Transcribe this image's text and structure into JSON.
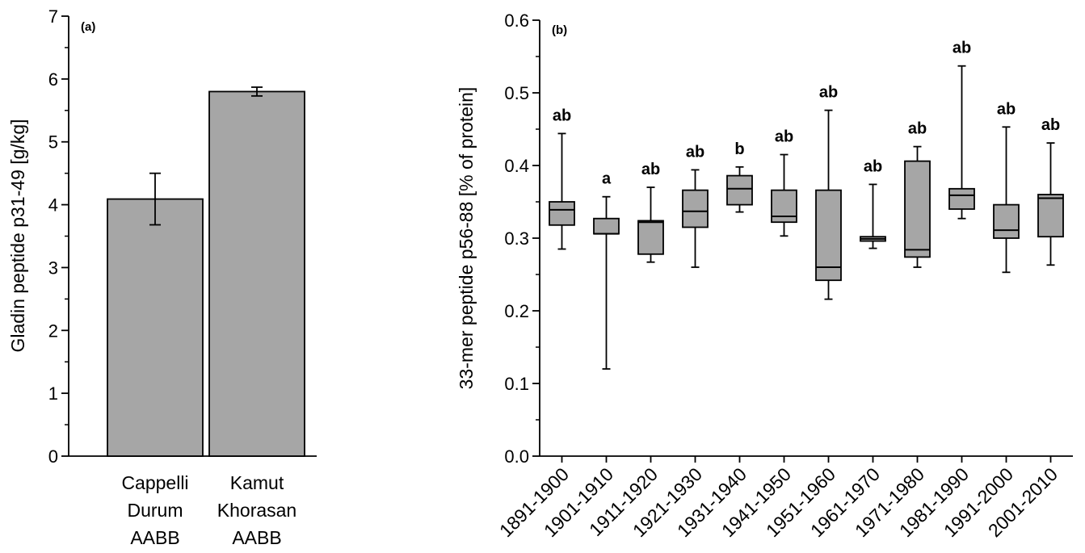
{
  "colors": {
    "fill": "#a6a6a6",
    "stroke": "#000000"
  },
  "chart_data": [
    {
      "type": "bar",
      "panel_label": "(a)",
      "ylabel": "Gladin peptide p31-49 [g/kg]",
      "ylim": [
        0,
        7
      ],
      "yticks": [
        0,
        1,
        2,
        3,
        4,
        5,
        6,
        7
      ],
      "categories": [
        [
          "Cappelli",
          "Durum",
          "AABB"
        ],
        [
          "Kamut",
          "Khorasan",
          "AABB"
        ]
      ],
      "values": [
        4.09,
        5.8
      ],
      "errors": [
        0.41,
        0.07
      ],
      "grid": false
    },
    {
      "type": "box",
      "panel_label": "(b)",
      "ylabel": "33-mer peptide p56-88 [% of protein]",
      "ylim": [
        0.0,
        0.6
      ],
      "yticks": [
        "0.0",
        "0.1",
        "0.2",
        "0.3",
        "0.4",
        "0.5",
        "0.6"
      ],
      "grid": false,
      "categories": [
        "1891-1900",
        "1901-1910",
        "1911-1920",
        "1921-1930",
        "1931-1940",
        "1941-1950",
        "1951-1960",
        "1961-1970",
        "1971-1980",
        "1981-1990",
        "1991-2000",
        "2001-2010"
      ],
      "boxes": [
        {
          "min": 0.285,
          "q1": 0.318,
          "median": 0.339,
          "q3": 0.35,
          "max": 0.444,
          "letter": "ab"
        },
        {
          "min": 0.12,
          "q1": 0.306,
          "median": 0.306,
          "q3": 0.327,
          "max": 0.357,
          "letter": "a"
        },
        {
          "min": 0.267,
          "q1": 0.278,
          "median": 0.322,
          "q3": 0.324,
          "max": 0.37,
          "letter": "ab"
        },
        {
          "min": 0.26,
          "q1": 0.315,
          "median": 0.337,
          "q3": 0.366,
          "max": 0.394,
          "letter": "ab"
        },
        {
          "min": 0.336,
          "q1": 0.346,
          "median": 0.368,
          "q3": 0.386,
          "max": 0.398,
          "letter": "b"
        },
        {
          "min": 0.303,
          "q1": 0.322,
          "median": 0.33,
          "q3": 0.366,
          "max": 0.415,
          "letter": "ab"
        },
        {
          "min": 0.216,
          "q1": 0.242,
          "median": 0.26,
          "q3": 0.366,
          "max": 0.476,
          "letter": "ab"
        },
        {
          "min": 0.286,
          "q1": 0.296,
          "median": 0.299,
          "q3": 0.302,
          "max": 0.374,
          "letter": "ab"
        },
        {
          "min": 0.26,
          "q1": 0.274,
          "median": 0.284,
          "q3": 0.406,
          "max": 0.426,
          "letter": "ab"
        },
        {
          "min": 0.327,
          "q1": 0.34,
          "median": 0.359,
          "q3": 0.368,
          "max": 0.537,
          "letter": "ab"
        },
        {
          "min": 0.253,
          "q1": 0.3,
          "median": 0.311,
          "q3": 0.346,
          "max": 0.453,
          "letter": "ab"
        },
        {
          "min": 0.263,
          "q1": 0.302,
          "median": 0.355,
          "q3": 0.36,
          "max": 0.431,
          "letter": "ab"
        }
      ]
    }
  ]
}
